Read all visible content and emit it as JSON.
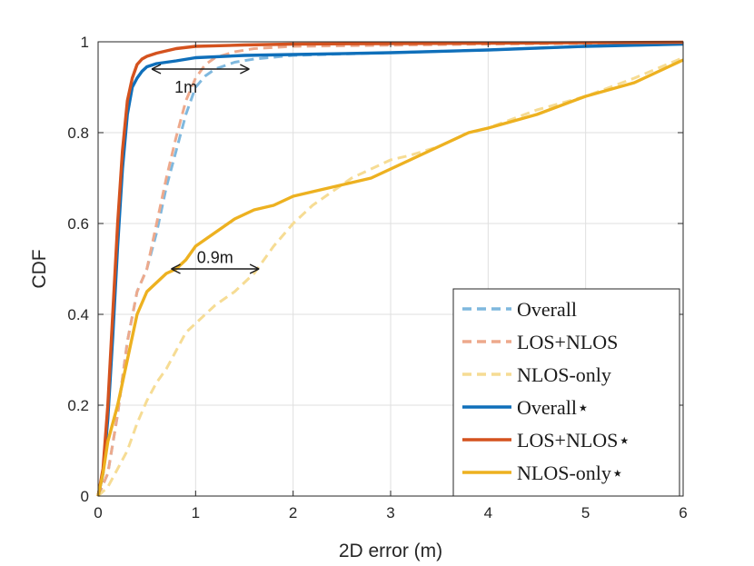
{
  "chart_data": {
    "type": "line",
    "title": "",
    "xlabel": "2D error (m)",
    "ylabel": "CDF",
    "xlim": [
      0,
      6
    ],
    "ylim": [
      0,
      1
    ],
    "x_ticks": [
      0,
      1,
      2,
      3,
      4,
      5,
      6
    ],
    "x_tick_labels": [
      "0",
      "1",
      "2",
      "3",
      "4",
      "5",
      "6"
    ],
    "y_ticks": [
      0,
      0.2,
      0.4,
      0.6,
      0.8,
      1
    ],
    "y_tick_labels": [
      "0",
      "0.2",
      "0.4",
      "0.6",
      "0.8",
      "1"
    ],
    "grid": true,
    "legend_position": "bottom-right",
    "series": [
      {
        "name": "Overall",
        "style": "dashed",
        "color": "#7fb8de",
        "points": [
          [
            0,
            0
          ],
          [
            0.1,
            0.05
          ],
          [
            0.2,
            0.18
          ],
          [
            0.3,
            0.34
          ],
          [
            0.4,
            0.45
          ],
          [
            0.5,
            0.5
          ],
          [
            0.6,
            0.58
          ],
          [
            0.7,
            0.68
          ],
          [
            0.8,
            0.76
          ],
          [
            0.9,
            0.84
          ],
          [
            1.0,
            0.9
          ],
          [
            1.1,
            0.925
          ],
          [
            1.2,
            0.94
          ],
          [
            1.4,
            0.955
          ],
          [
            1.6,
            0.962
          ],
          [
            2.0,
            0.97
          ],
          [
            3.0,
            0.976
          ],
          [
            4.0,
            0.982
          ],
          [
            5.0,
            0.99
          ],
          [
            6.0,
            0.995
          ]
        ]
      },
      {
        "name": "LOS+NLOS",
        "style": "dashed",
        "color": "#eda98c",
        "points": [
          [
            0,
            0
          ],
          [
            0.1,
            0.05
          ],
          [
            0.2,
            0.18
          ],
          [
            0.3,
            0.34
          ],
          [
            0.4,
            0.45
          ],
          [
            0.5,
            0.5
          ],
          [
            0.6,
            0.6
          ],
          [
            0.7,
            0.7
          ],
          [
            0.8,
            0.79
          ],
          [
            0.9,
            0.87
          ],
          [
            1.0,
            0.92
          ],
          [
            1.1,
            0.95
          ],
          [
            1.2,
            0.965
          ],
          [
            1.4,
            0.978
          ],
          [
            1.6,
            0.985
          ],
          [
            2.0,
            0.99
          ],
          [
            4.0,
            0.995
          ],
          [
            6.0,
            0.998
          ]
        ]
      },
      {
        "name": "NLOS-only",
        "style": "dashed",
        "color": "#f6dc94",
        "points": [
          [
            0,
            0
          ],
          [
            0.1,
            0.02
          ],
          [
            0.2,
            0.06
          ],
          [
            0.3,
            0.1
          ],
          [
            0.4,
            0.16
          ],
          [
            0.5,
            0.21
          ],
          [
            0.6,
            0.25
          ],
          [
            0.7,
            0.28
          ],
          [
            0.8,
            0.32
          ],
          [
            0.9,
            0.36
          ],
          [
            1.0,
            0.38
          ],
          [
            1.2,
            0.42
          ],
          [
            1.4,
            0.45
          ],
          [
            1.6,
            0.49
          ],
          [
            1.8,
            0.55
          ],
          [
            2.0,
            0.6
          ],
          [
            2.2,
            0.64
          ],
          [
            2.4,
            0.67
          ],
          [
            2.6,
            0.7
          ],
          [
            2.8,
            0.72
          ],
          [
            3.0,
            0.74
          ],
          [
            3.2,
            0.75
          ],
          [
            3.5,
            0.77
          ],
          [
            3.8,
            0.8
          ],
          [
            4.0,
            0.81
          ],
          [
            4.5,
            0.85
          ],
          [
            5.0,
            0.88
          ],
          [
            5.5,
            0.92
          ],
          [
            6.0,
            0.965
          ]
        ]
      },
      {
        "name": "Overall⋆",
        "style": "solid",
        "color": "#0f6fba",
        "points": [
          [
            0,
            0
          ],
          [
            0.05,
            0.05
          ],
          [
            0.1,
            0.17
          ],
          [
            0.15,
            0.35
          ],
          [
            0.2,
            0.55
          ],
          [
            0.25,
            0.72
          ],
          [
            0.3,
            0.84
          ],
          [
            0.35,
            0.9
          ],
          [
            0.4,
            0.92
          ],
          [
            0.45,
            0.935
          ],
          [
            0.5,
            0.945
          ],
          [
            0.6,
            0.952
          ],
          [
            0.8,
            0.958
          ],
          [
            1.0,
            0.965
          ],
          [
            1.5,
            0.97
          ],
          [
            2.0,
            0.972
          ],
          [
            3.0,
            0.976
          ],
          [
            4.0,
            0.982
          ],
          [
            5.0,
            0.99
          ],
          [
            6.0,
            0.995
          ]
        ]
      },
      {
        "name": "LOS+NLOS⋆",
        "style": "solid",
        "color": "#d4521e",
        "points": [
          [
            0,
            0
          ],
          [
            0.05,
            0.06
          ],
          [
            0.1,
            0.2
          ],
          [
            0.15,
            0.4
          ],
          [
            0.2,
            0.6
          ],
          [
            0.25,
            0.76
          ],
          [
            0.3,
            0.87
          ],
          [
            0.35,
            0.92
          ],
          [
            0.4,
            0.95
          ],
          [
            0.45,
            0.962
          ],
          [
            0.5,
            0.968
          ],
          [
            0.6,
            0.975
          ],
          [
            0.8,
            0.985
          ],
          [
            1.0,
            0.99
          ],
          [
            1.5,
            0.993
          ],
          [
            2.0,
            0.995
          ],
          [
            4.0,
            0.997
          ],
          [
            6.0,
            0.999
          ]
        ]
      },
      {
        "name": "NLOS-only⋆",
        "style": "solid",
        "color": "#edb120",
        "points": [
          [
            0,
            0
          ],
          [
            0.05,
            0.05
          ],
          [
            0.1,
            0.12
          ],
          [
            0.2,
            0.2
          ],
          [
            0.3,
            0.3
          ],
          [
            0.4,
            0.4
          ],
          [
            0.5,
            0.45
          ],
          [
            0.6,
            0.47
          ],
          [
            0.7,
            0.49
          ],
          [
            0.8,
            0.5
          ],
          [
            0.9,
            0.52
          ],
          [
            1.0,
            0.55
          ],
          [
            1.2,
            0.58
          ],
          [
            1.4,
            0.61
          ],
          [
            1.6,
            0.63
          ],
          [
            1.8,
            0.64
          ],
          [
            2.0,
            0.66
          ],
          [
            2.2,
            0.67
          ],
          [
            2.4,
            0.68
          ],
          [
            2.6,
            0.69
          ],
          [
            2.8,
            0.7
          ],
          [
            3.0,
            0.72
          ],
          [
            3.2,
            0.74
          ],
          [
            3.5,
            0.77
          ],
          [
            3.8,
            0.8
          ],
          [
            4.0,
            0.81
          ],
          [
            4.5,
            0.84
          ],
          [
            5.0,
            0.88
          ],
          [
            5.5,
            0.91
          ],
          [
            6.0,
            0.96
          ]
        ]
      }
    ],
    "annotations": [
      {
        "text": "1m",
        "arrow_from": [
          0.55,
          0.94
        ],
        "arrow_to": [
          1.55,
          0.94
        ],
        "text_at": [
          0.9,
          0.9
        ]
      },
      {
        "text": "0.9m",
        "arrow_from": [
          0.75,
          0.5
        ],
        "arrow_to": [
          1.65,
          0.5
        ],
        "text_at": [
          1.2,
          0.525
        ]
      }
    ]
  }
}
